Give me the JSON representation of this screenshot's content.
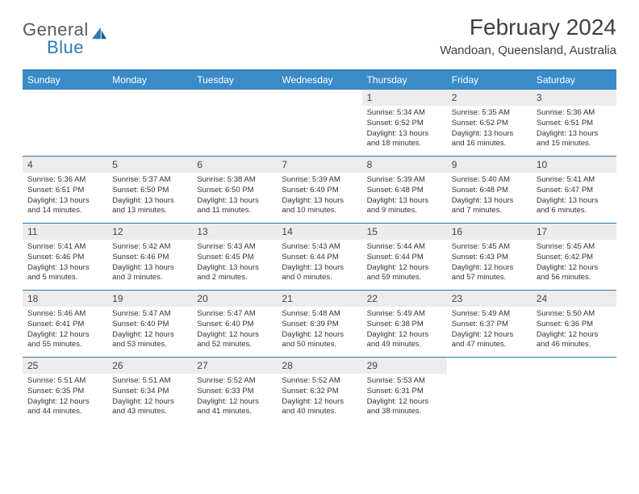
{
  "logo": {
    "text1": "General",
    "text2": "Blue"
  },
  "title": "February 2024",
  "location": "Wandoan, Queensland, Australia",
  "colors": {
    "header_bg": "#3b8bc9",
    "border": "#2f7ab8",
    "daynum_bg": "#ececec",
    "logo_gray": "#5a5a5a",
    "logo_blue": "#2f7ab8"
  },
  "weekdays": [
    "Sunday",
    "Monday",
    "Tuesday",
    "Wednesday",
    "Thursday",
    "Friday",
    "Saturday"
  ],
  "weeks": [
    [
      {
        "empty": true
      },
      {
        "empty": true
      },
      {
        "empty": true
      },
      {
        "empty": true
      },
      {
        "n": "1",
        "sunrise": "5:34 AM",
        "sunset": "6:52 PM",
        "daylight": "13 hours and 18 minutes."
      },
      {
        "n": "2",
        "sunrise": "5:35 AM",
        "sunset": "6:52 PM",
        "daylight": "13 hours and 16 minutes."
      },
      {
        "n": "3",
        "sunrise": "5:36 AM",
        "sunset": "6:51 PM",
        "daylight": "13 hours and 15 minutes."
      }
    ],
    [
      {
        "n": "4",
        "sunrise": "5:36 AM",
        "sunset": "6:51 PM",
        "daylight": "13 hours and 14 minutes."
      },
      {
        "n": "5",
        "sunrise": "5:37 AM",
        "sunset": "6:50 PM",
        "daylight": "13 hours and 13 minutes."
      },
      {
        "n": "6",
        "sunrise": "5:38 AM",
        "sunset": "6:50 PM",
        "daylight": "13 hours and 11 minutes."
      },
      {
        "n": "7",
        "sunrise": "5:39 AM",
        "sunset": "6:49 PM",
        "daylight": "13 hours and 10 minutes."
      },
      {
        "n": "8",
        "sunrise": "5:39 AM",
        "sunset": "6:48 PM",
        "daylight": "13 hours and 9 minutes."
      },
      {
        "n": "9",
        "sunrise": "5:40 AM",
        "sunset": "6:48 PM",
        "daylight": "13 hours and 7 minutes."
      },
      {
        "n": "10",
        "sunrise": "5:41 AM",
        "sunset": "6:47 PM",
        "daylight": "13 hours and 6 minutes."
      }
    ],
    [
      {
        "n": "11",
        "sunrise": "5:41 AM",
        "sunset": "6:46 PM",
        "daylight": "13 hours and 5 minutes."
      },
      {
        "n": "12",
        "sunrise": "5:42 AM",
        "sunset": "6:46 PM",
        "daylight": "13 hours and 3 minutes."
      },
      {
        "n": "13",
        "sunrise": "5:43 AM",
        "sunset": "6:45 PM",
        "daylight": "13 hours and 2 minutes."
      },
      {
        "n": "14",
        "sunrise": "5:43 AM",
        "sunset": "6:44 PM",
        "daylight": "13 hours and 0 minutes."
      },
      {
        "n": "15",
        "sunrise": "5:44 AM",
        "sunset": "6:44 PM",
        "daylight": "12 hours and 59 minutes."
      },
      {
        "n": "16",
        "sunrise": "5:45 AM",
        "sunset": "6:43 PM",
        "daylight": "12 hours and 57 minutes."
      },
      {
        "n": "17",
        "sunrise": "5:45 AM",
        "sunset": "6:42 PM",
        "daylight": "12 hours and 56 minutes."
      }
    ],
    [
      {
        "n": "18",
        "sunrise": "5:46 AM",
        "sunset": "6:41 PM",
        "daylight": "12 hours and 55 minutes."
      },
      {
        "n": "19",
        "sunrise": "5:47 AM",
        "sunset": "6:40 PM",
        "daylight": "12 hours and 53 minutes."
      },
      {
        "n": "20",
        "sunrise": "5:47 AM",
        "sunset": "6:40 PM",
        "daylight": "12 hours and 52 minutes."
      },
      {
        "n": "21",
        "sunrise": "5:48 AM",
        "sunset": "6:39 PM",
        "daylight": "12 hours and 50 minutes."
      },
      {
        "n": "22",
        "sunrise": "5:49 AM",
        "sunset": "6:38 PM",
        "daylight": "12 hours and 49 minutes."
      },
      {
        "n": "23",
        "sunrise": "5:49 AM",
        "sunset": "6:37 PM",
        "daylight": "12 hours and 47 minutes."
      },
      {
        "n": "24",
        "sunrise": "5:50 AM",
        "sunset": "6:36 PM",
        "daylight": "12 hours and 46 minutes."
      }
    ],
    [
      {
        "n": "25",
        "sunrise": "5:51 AM",
        "sunset": "6:35 PM",
        "daylight": "12 hours and 44 minutes."
      },
      {
        "n": "26",
        "sunrise": "5:51 AM",
        "sunset": "6:34 PM",
        "daylight": "12 hours and 43 minutes."
      },
      {
        "n": "27",
        "sunrise": "5:52 AM",
        "sunset": "6:33 PM",
        "daylight": "12 hours and 41 minutes."
      },
      {
        "n": "28",
        "sunrise": "5:52 AM",
        "sunset": "6:32 PM",
        "daylight": "12 hours and 40 minutes."
      },
      {
        "n": "29",
        "sunrise": "5:53 AM",
        "sunset": "6:31 PM",
        "daylight": "12 hours and 38 minutes."
      },
      {
        "empty": true
      },
      {
        "empty": true
      }
    ]
  ],
  "labels": {
    "sunrise": "Sunrise:",
    "sunset": "Sunset:",
    "daylight": "Daylight:"
  }
}
